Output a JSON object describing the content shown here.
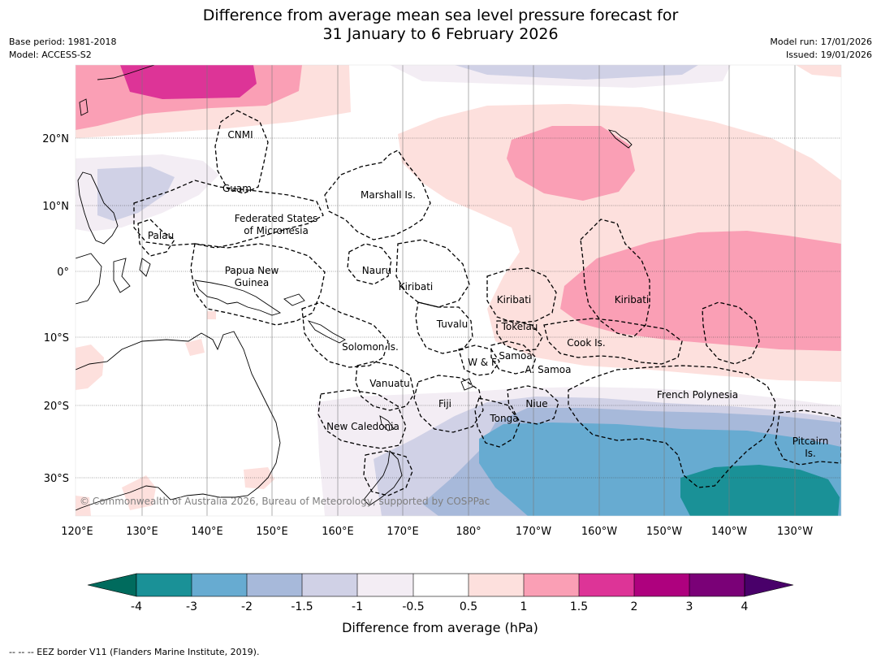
{
  "header": {
    "title_line1": "Difference from average mean sea level pressure forecast for",
    "title_line2": "31 January to 6 February 2026",
    "base_period": "Base period: 1981-2018",
    "model": "Model: ACCESS-S2",
    "model_run": "Model run: 17/01/2026",
    "issued": "Issued: 19/01/2026"
  },
  "map": {
    "copyright": "© Commonwealth of Australia 2026, Bureau of Meteorology, supported by COSPPac",
    "lon_ticks": [
      "120°E",
      "130°E",
      "140°E",
      "150°E",
      "160°E",
      "170°E",
      "180°",
      "170°W",
      "160°W",
      "150°W",
      "140°W",
      "130°W"
    ],
    "lat_ticks": [
      "20°N",
      "10°N",
      "0°",
      "10°S",
      "20°S",
      "30°S"
    ],
    "regions": {
      "cnmi": "CNMI",
      "guam": "Guam",
      "marshall": "Marshall Is.",
      "fsm1": "Federated States",
      "fsm2": "of Micronesia",
      "palau": "Palau",
      "png1": "Papua New",
      "png2": "Guinea",
      "nauru": "Nauru",
      "kiribati_w": "Kiribati",
      "kiribati_c": "Kiribati",
      "kiribati_e": "Kiribati",
      "tuvalu": "Tuvalu",
      "tokelau": "Tokelau",
      "cook": "Cook Is.",
      "solomon": "Solomon Is.",
      "wf": "W & F",
      "samoa": "Samoa",
      "asamoa": "A. Samoa",
      "vanuatu": "Vanuatu",
      "fiji": "Fiji",
      "niue": "Niue",
      "tonga": "Tonga",
      "newcal": "New Caledonia",
      "frpoly": "French Polynesia",
      "pitcairn1": "Pitcairn",
      "pitcairn2": "Is."
    }
  },
  "colorbar": {
    "ticks": [
      "-4",
      "-3",
      "-2",
      "-1.5",
      "-1",
      "-0.5",
      "0.5",
      "1",
      "1.5",
      "2",
      "3",
      "4"
    ],
    "label": "Difference from average (hPa)",
    "colors": {
      "lt_m4": "#006b5d",
      "m4_m3": "#1a9197",
      "m3_m2": "#67abd1",
      "m2_m15": "#a7b9da",
      "m15_m1": "#d0d1e6",
      "m1_m05": "#f3edf4",
      "neutral": "#ffffff",
      "p05_1": "#fde0dd",
      "p1_15": "#fa9fb5",
      "p15_2": "#dd3497",
      "p2_3": "#ae017e",
      "p3_4": "#7a0177",
      "gt_4": "#49006a"
    }
  },
  "footer": {
    "eez_note": "-- -- -- EEZ border V11 (Flanders Marine Institute, 2019)."
  }
}
